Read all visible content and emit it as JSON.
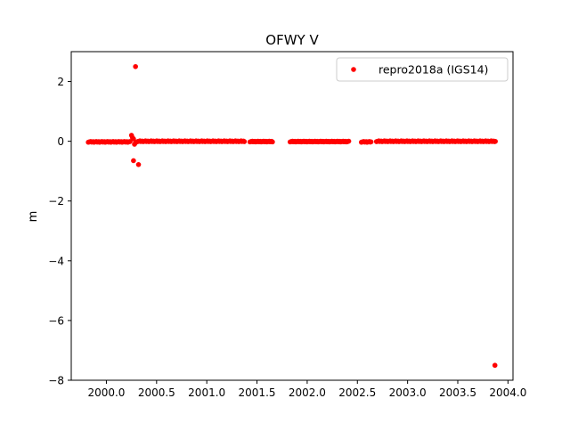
{
  "chart_data": {
    "type": "scatter",
    "title": "OFWY V",
    "xlabel": "",
    "ylabel": "m",
    "xlim": [
      1999.65,
      2004.05
    ],
    "ylim": [
      -8,
      3
    ],
    "xticks": [
      2000.0,
      2000.5,
      2001.0,
      2001.5,
      2002.0,
      2002.5,
      2003.0,
      2003.5,
      2004.0
    ],
    "xtick_labels": [
      "2000.0",
      "2000.5",
      "2001.0",
      "2001.5",
      "2002.0",
      "2002.5",
      "2003.0",
      "2003.5",
      "2004.0"
    ],
    "yticks": [
      2,
      0,
      -2,
      -4,
      -6,
      -8
    ],
    "ytick_labels": [
      "2",
      "0",
      "−2",
      "−4",
      "−6",
      "−8"
    ],
    "grid": false,
    "legend": {
      "position": "top-right"
    },
    "series": [
      {
        "name": "repro2018a (IGS14)",
        "color": "#ff0000",
        "marker": "circle",
        "segments": [
          {
            "x_start": 1999.82,
            "x_end": 2000.24,
            "y": -0.02
          },
          {
            "x_start": 2000.31,
            "x_end": 2001.38,
            "y": 0.0
          },
          {
            "x_start": 2001.43,
            "x_end": 2001.66,
            "y": -0.01
          },
          {
            "x_start": 2001.83,
            "x_end": 2002.42,
            "y": -0.01
          },
          {
            "x_start": 2002.54,
            "x_end": 2002.64,
            "y": -0.02
          },
          {
            "x_start": 2002.69,
            "x_end": 2003.88,
            "y": 0.0
          }
        ],
        "points": [
          {
            "x": 2000.29,
            "y": 2.5
          },
          {
            "x": 2000.27,
            "y": -0.65
          },
          {
            "x": 2000.32,
            "y": -0.78
          },
          {
            "x": 2000.25,
            "y": 0.2
          },
          {
            "x": 2000.26,
            "y": 0.12
          },
          {
            "x": 2000.27,
            "y": 0.08
          },
          {
            "x": 2000.28,
            "y": -0.1
          },
          {
            "x": 2000.29,
            "y": -0.05
          },
          {
            "x": 2003.87,
            "y": -7.5
          }
        ]
      }
    ]
  }
}
